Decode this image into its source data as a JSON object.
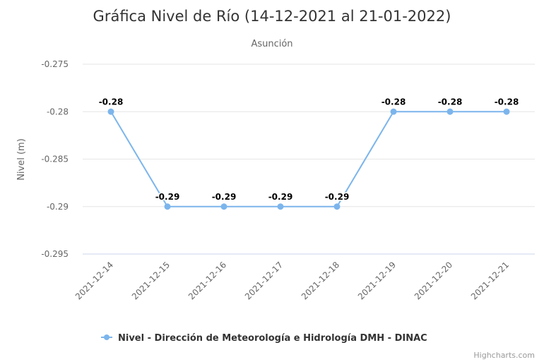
{
  "chart_data": {
    "type": "line",
    "title": "Gráfica Nivel de Río (14-12-2021 al 21-01-2022)",
    "subtitle": "Asunción",
    "xlabel": "",
    "ylabel": "Nivel (m)",
    "categories": [
      "2021-12-14",
      "2021-12-15",
      "2021-12-16",
      "2021-12-17",
      "2021-12-18",
      "2021-12-19",
      "2021-12-20",
      "2021-12-21"
    ],
    "series": [
      {
        "name": "Nivel - Dirección de Meteorología e Hidrología DMH - DINAC",
        "values": [
          -0.28,
          -0.29,
          -0.29,
          -0.29,
          -0.29,
          -0.28,
          -0.28,
          -0.28
        ],
        "data_labels": [
          "-0.28",
          "-0.29",
          "-0.29",
          "-0.29",
          "-0.29",
          "-0.28",
          "-0.28",
          "-0.28"
        ],
        "color": "#7cb5ec"
      }
    ],
    "yticks": [
      -0.275,
      -0.28,
      -0.285,
      -0.29,
      -0.295
    ],
    "ytick_labels": [
      "-0.275",
      "-0.28",
      "-0.285",
      "-0.29",
      "-0.295"
    ],
    "ylim": [
      -0.295,
      -0.275
    ],
    "grid": true,
    "legend_position": "bottom-center"
  },
  "credits": "Highcharts.com"
}
